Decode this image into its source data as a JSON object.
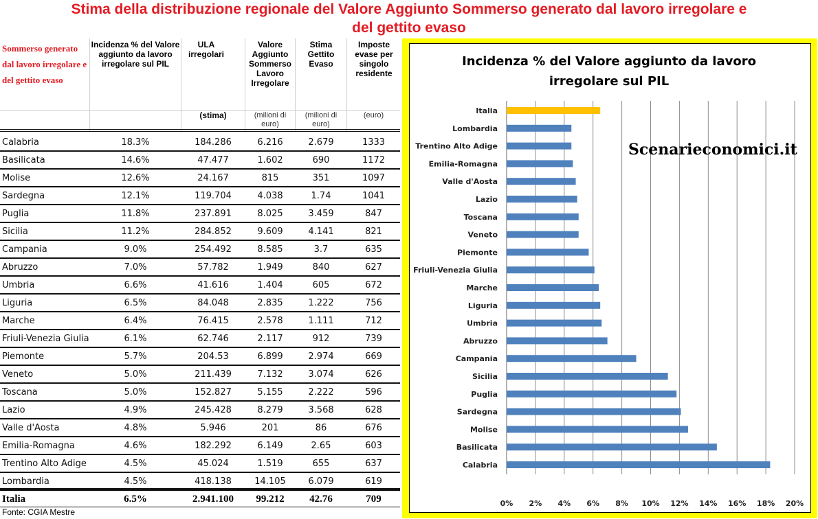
{
  "title_line1": "Stima della distribuzione regionale del Valore Aggiunto Sommerso generato dal lavoro irregolare e",
  "title_line2": "del gettito evaso",
  "table": {
    "headers": [
      "Sommerso generato dal lavoro irregolare e del gettito evaso",
      "Incidenza % del Valore aggiunto da lavoro irregolare sul PIL",
      "ULA irregolari",
      "Valore Aggiunto Sommerso Lavoro Irregolare",
      "Stima Gettito Evaso",
      "Imposte evase per singolo residente"
    ],
    "units": [
      "",
      "",
      "(stima)",
      "(milioni di euro)",
      "(milioni di euro)",
      "(euro)"
    ],
    "rows": [
      [
        "Calabria",
        "18.3%",
        "184.286",
        "6.216",
        "2.679",
        "1333"
      ],
      [
        "Basilicata",
        "14.6%",
        "47.477",
        "1.602",
        "690",
        "1172"
      ],
      [
        "Molise",
        "12.6%",
        "24.167",
        "815",
        "351",
        "1097"
      ],
      [
        "Sardegna",
        "12.1%",
        "119.704",
        "4.038",
        "1.74",
        "1041"
      ],
      [
        "Puglia",
        "11.8%",
        "237.891",
        "8.025",
        "3.459",
        "847"
      ],
      [
        "Sicilia",
        "11.2%",
        "284.852",
        "9.609",
        "4.141",
        "821"
      ],
      [
        "Campania",
        "9.0%",
        "254.492",
        "8.585",
        "3.7",
        "635"
      ],
      [
        "Abruzzo",
        "7.0%",
        "57.782",
        "1.949",
        "840",
        "627"
      ],
      [
        "Umbria",
        "6.6%",
        "41.616",
        "1.404",
        "605",
        "672"
      ],
      [
        "Liguria",
        "6.5%",
        "84.048",
        "2.835",
        "1.222",
        "756"
      ],
      [
        "Marche",
        "6.4%",
        "76.415",
        "2.578",
        "1.111",
        "712"
      ],
      [
        "Friuli-Venezia Giulia",
        "6.1%",
        "62.746",
        "2.117",
        "912",
        "739"
      ],
      [
        "Piemonte",
        "5.7%",
        "204.53",
        "6.899",
        "2.974",
        "669"
      ],
      [
        "Veneto",
        "5.0%",
        "211.439",
        "7.132",
        "3.074",
        "626"
      ],
      [
        "Toscana",
        "5.0%",
        "152.827",
        "5.155",
        "2.222",
        "596"
      ],
      [
        "Lazio",
        "4.9%",
        "245.428",
        "8.279",
        "3.568",
        "628"
      ],
      [
        "Valle d'Aosta",
        "4.8%",
        "5.946",
        "201",
        "86",
        "676"
      ],
      [
        "Emilia-Romagna",
        "4.6%",
        "182.292",
        "6.149",
        "2.65",
        "603"
      ],
      [
        "Trentino Alto Adige",
        "4.5%",
        "45.024",
        "1.519",
        "655",
        "637"
      ],
      [
        "Lombardia",
        "4.5%",
        "418.138",
        "14.105",
        "6.079",
        "619"
      ]
    ],
    "total": [
      "Italia",
      "6.5%",
      "2.941.100",
      "99.212",
      "42.76",
      "709"
    ],
    "source": "Fonte: CGIA Mestre"
  },
  "watermark": "Scenarieconomici.it",
  "colors": {
    "title": "#e31b23",
    "frame": "#ffff00",
    "bar": "#4f81bd",
    "highlight": "#ffc000"
  },
  "chart_data": {
    "type": "bar",
    "orientation": "horizontal",
    "title": "Incidenza % del Valore aggiunto da lavoro irregolare sul PIL",
    "categories": [
      "Italia",
      "Lombardia",
      "Trentino Alto Adige",
      "Emilia-Romagna",
      "Valle d'Aosta",
      "Lazio",
      "Toscana",
      "Veneto",
      "Piemonte",
      "Friuli-Venezia Giulia",
      "Marche",
      "Liguria",
      "Umbria",
      "Abruzzo",
      "Campania",
      "Sicilia",
      "Puglia",
      "Sardegna",
      "Molise",
      "Basilicata",
      "Calabria"
    ],
    "values": [
      6.5,
      4.5,
      4.5,
      4.6,
      4.8,
      4.9,
      5.0,
      5.0,
      5.7,
      6.1,
      6.4,
      6.5,
      6.6,
      7.0,
      9.0,
      11.2,
      11.8,
      12.1,
      12.6,
      14.6,
      18.3
    ],
    "highlight": "Italia",
    "xlim": [
      0,
      20
    ],
    "xticks": [
      "0%",
      "2%",
      "4%",
      "6%",
      "8%",
      "10%",
      "12%",
      "14%",
      "16%",
      "18%",
      "20%"
    ],
    "grid": true
  }
}
